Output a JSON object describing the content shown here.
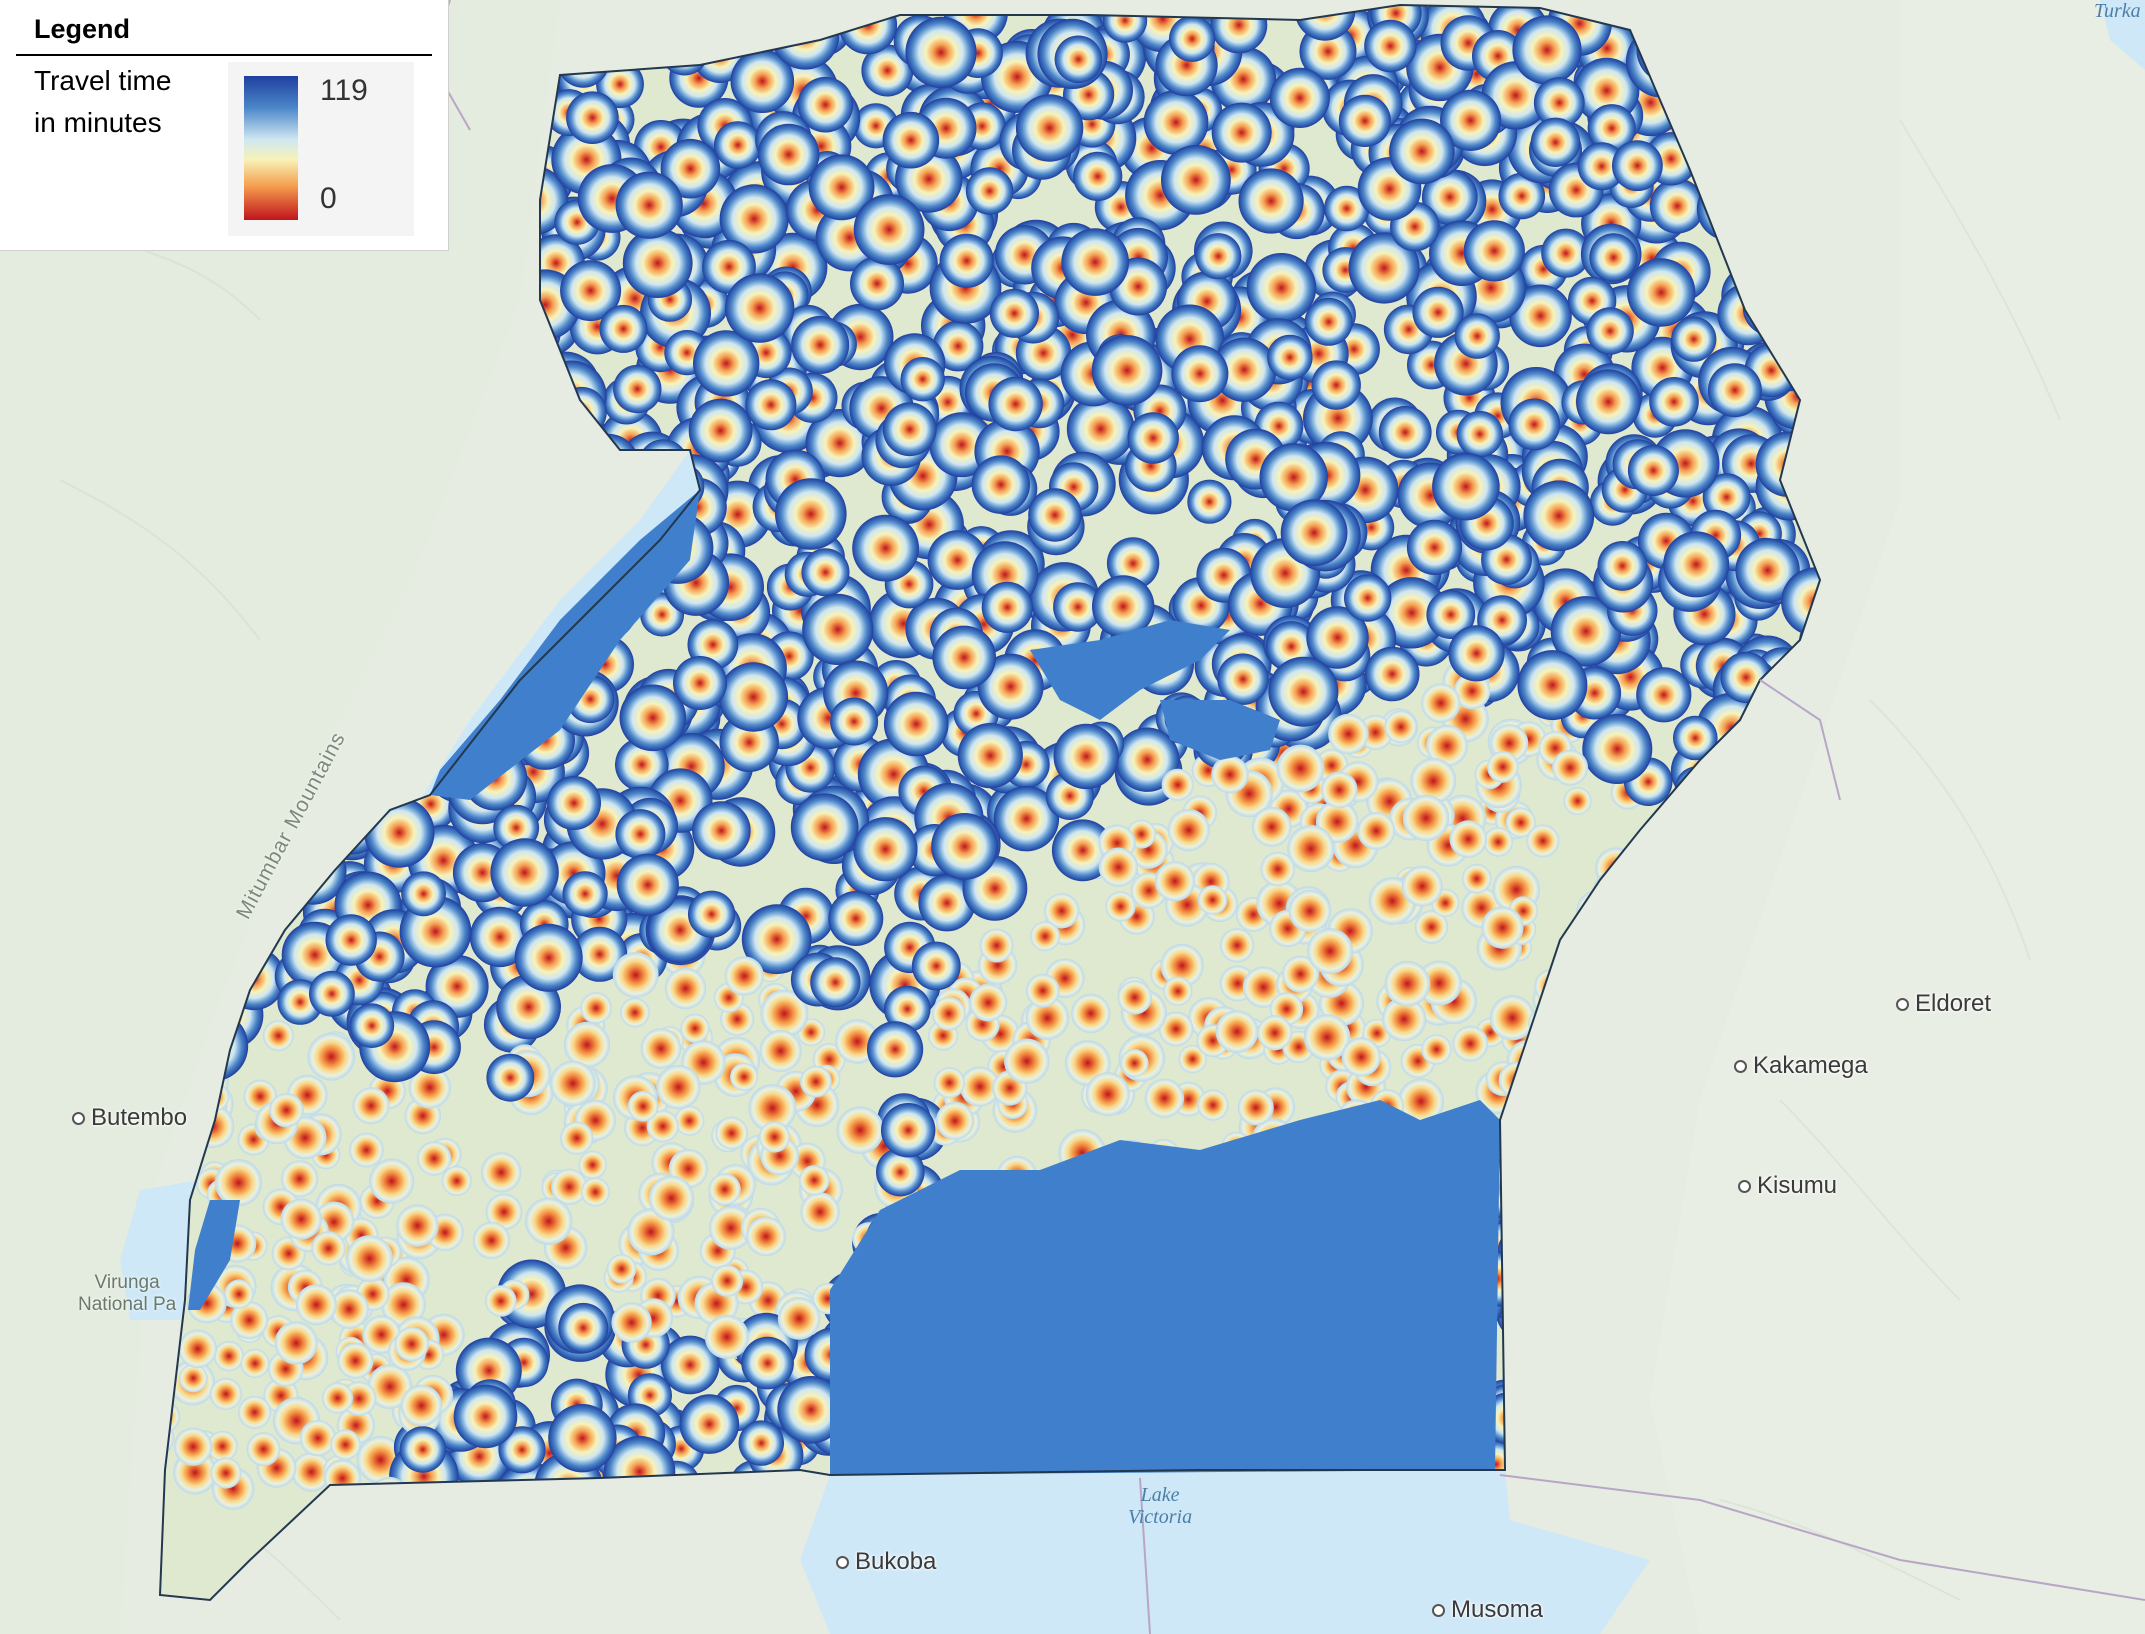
{
  "legend": {
    "title": "Legend",
    "label_line1": "Travel time",
    "label_line2": "in minutes",
    "max_value": "119",
    "min_value": "0",
    "colors": [
      "#1f3f9e",
      "#4b86c9",
      "#cfe7f2",
      "#f7f2b8",
      "#f6a050",
      "#c0141c"
    ]
  },
  "places": {
    "butembo": "Butembo",
    "eldoret": "Eldoret",
    "kakamega": "Kakamega",
    "kisumu": "Kisumu",
    "bukoba": "Bukoba",
    "musoma": "Musoma",
    "turkana_partial": "Turka"
  },
  "park": {
    "line1": "Virunga",
    "line2": "National Pa"
  },
  "lake": {
    "line1": "Lake",
    "line2": "Victoria"
  },
  "mountains": "Mitumbar Mountains",
  "colors": {
    "water": "#3f7fcb",
    "water_light": "#cfe8f8",
    "land": "#e6ece2"
  }
}
